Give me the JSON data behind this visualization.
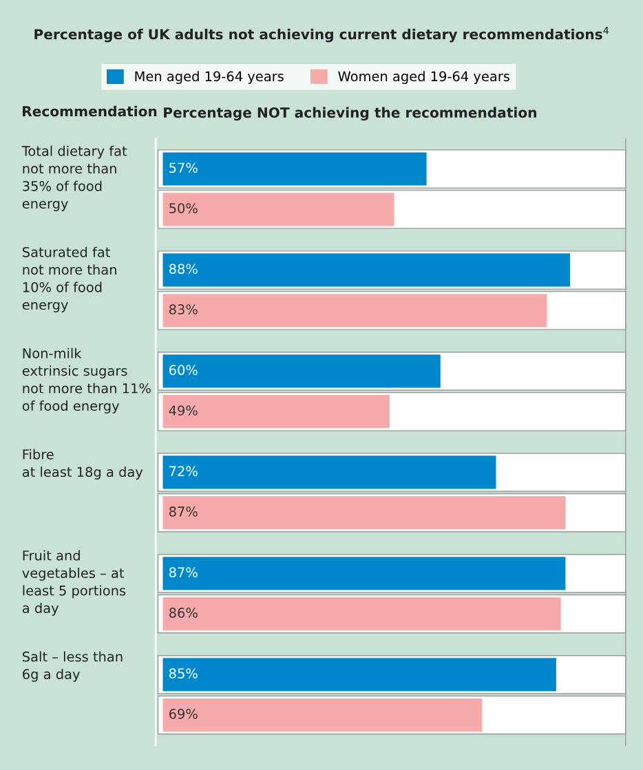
{
  "chart_data": {
    "type": "bar",
    "orientation": "horizontal",
    "title": "Percentage of UK adults not achieving current dietary recommendations$^{4}$",
    "ylabel": "Recommendation",
    "xlabel": "Percentage NOT achieving the recommendation",
    "categories": [
      "Total dietary fat\nnot more than\n35% of food\nenergy",
      "Saturated fat\nnot more than\n10% of food\nenergy",
      "Non-milk\nextrinsic sugars\nnot more than 11%\nof food energy",
      "Fibre\nat least 18g a day",
      "Fruit and\nvegetables – at\nleast 5 portions\na day",
      "Salt – less than\n6g a day"
    ],
    "series": [
      {
        "name": "Men aged 19-64 years",
        "color": "#0087cc",
        "values": [
          57,
          88,
          60,
          72,
          87,
          85
        ],
        "value_labels": [
          "57%",
          "88%",
          "60%",
          "72%",
          "87%",
          "85%"
        ]
      },
      {
        "name": "Women aged 19-64 years",
        "color": "#f6aaaa",
        "values": [
          50,
          83,
          49,
          87,
          86,
          69
        ],
        "value_labels": [
          "50%",
          "83%",
          "49%",
          "87%",
          "86%",
          "69%"
        ]
      }
    ],
    "xlim": [
      0,
      100
    ],
    "tick_labels": "y",
    "legend": "top"
  }
}
